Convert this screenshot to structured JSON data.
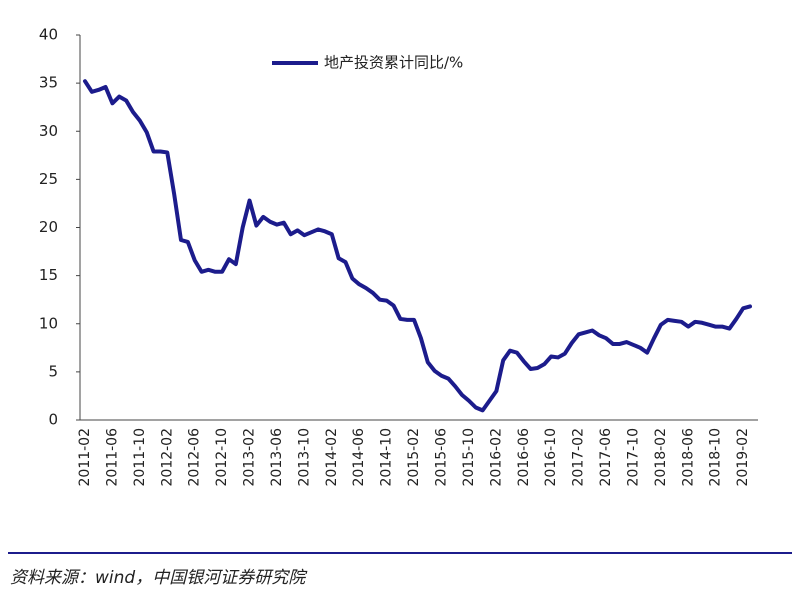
{
  "chart_data": {
    "type": "line",
    "categories": [
      "2011-02",
      null,
      null,
      null,
      "2011-06",
      null,
      null,
      null,
      "2011-10",
      null,
      null,
      null,
      "2012-02",
      null,
      null,
      null,
      "2012-06",
      null,
      null,
      null,
      "2012-10",
      null,
      null,
      null,
      "2013-02",
      null,
      null,
      null,
      "2013-06",
      null,
      null,
      null,
      "2013-10",
      null,
      null,
      null,
      "2014-02",
      null,
      null,
      null,
      "2014-06",
      null,
      null,
      null,
      "2014-10",
      null,
      null,
      null,
      "2015-02",
      null,
      null,
      null,
      "2015-06",
      null,
      null,
      null,
      "2015-10",
      null,
      null,
      null,
      "2016-02",
      null,
      null,
      null,
      "2016-06",
      null,
      null,
      null,
      "2016-10",
      null,
      null,
      null,
      "2017-02",
      null,
      null,
      null,
      "2017-06",
      null,
      null,
      null,
      "2017-10",
      null,
      null,
      null,
      "2018-02",
      null,
      null,
      null,
      "2018-06",
      null,
      null,
      null,
      "2018-10",
      null,
      null,
      null,
      "2019-02",
      null
    ],
    "series": [
      {
        "name": "地产投资累计同比/%",
        "color": "#1c1c8c",
        "values": [
          35.2,
          34.1,
          34.3,
          34.6,
          32.9,
          33.6,
          33.2,
          32.0,
          31.1,
          29.9,
          27.9,
          27.9,
          27.8,
          23.5,
          18.7,
          18.5,
          16.6,
          15.4,
          15.6,
          15.4,
          15.4,
          16.7,
          16.2,
          20.0,
          22.8,
          20.2,
          21.1,
          20.6,
          20.3,
          20.5,
          19.3,
          19.7,
          19.2,
          19.5,
          19.8,
          19.6,
          19.3,
          16.8,
          16.4,
          14.7,
          14.1,
          13.7,
          13.2,
          12.5,
          12.4,
          11.9,
          10.5,
          10.4,
          10.4,
          8.5,
          6.0,
          5.1,
          4.6,
          4.3,
          3.5,
          2.6,
          2.0,
          1.3,
          1.0,
          2.0,
          3.0,
          6.2,
          7.2,
          7.0,
          6.1,
          5.3,
          5.4,
          5.8,
          6.6,
          6.5,
          6.9,
          8.0,
          8.9,
          9.1,
          9.3,
          8.8,
          8.5,
          7.9,
          7.9,
          8.1,
          7.8,
          7.5,
          7.0,
          8.5,
          9.9,
          10.4,
          10.3,
          10.2,
          9.7,
          10.2,
          10.1,
          9.9,
          9.7,
          9.7,
          9.5,
          10.5,
          11.6,
          11.8
        ]
      }
    ],
    "ylim": [
      0,
      40
    ],
    "yticks": [
      0,
      5,
      10,
      15,
      20,
      25,
      30,
      35,
      40
    ],
    "grid": false
  },
  "source": "资料来源：wind，中国银河证券研究院"
}
